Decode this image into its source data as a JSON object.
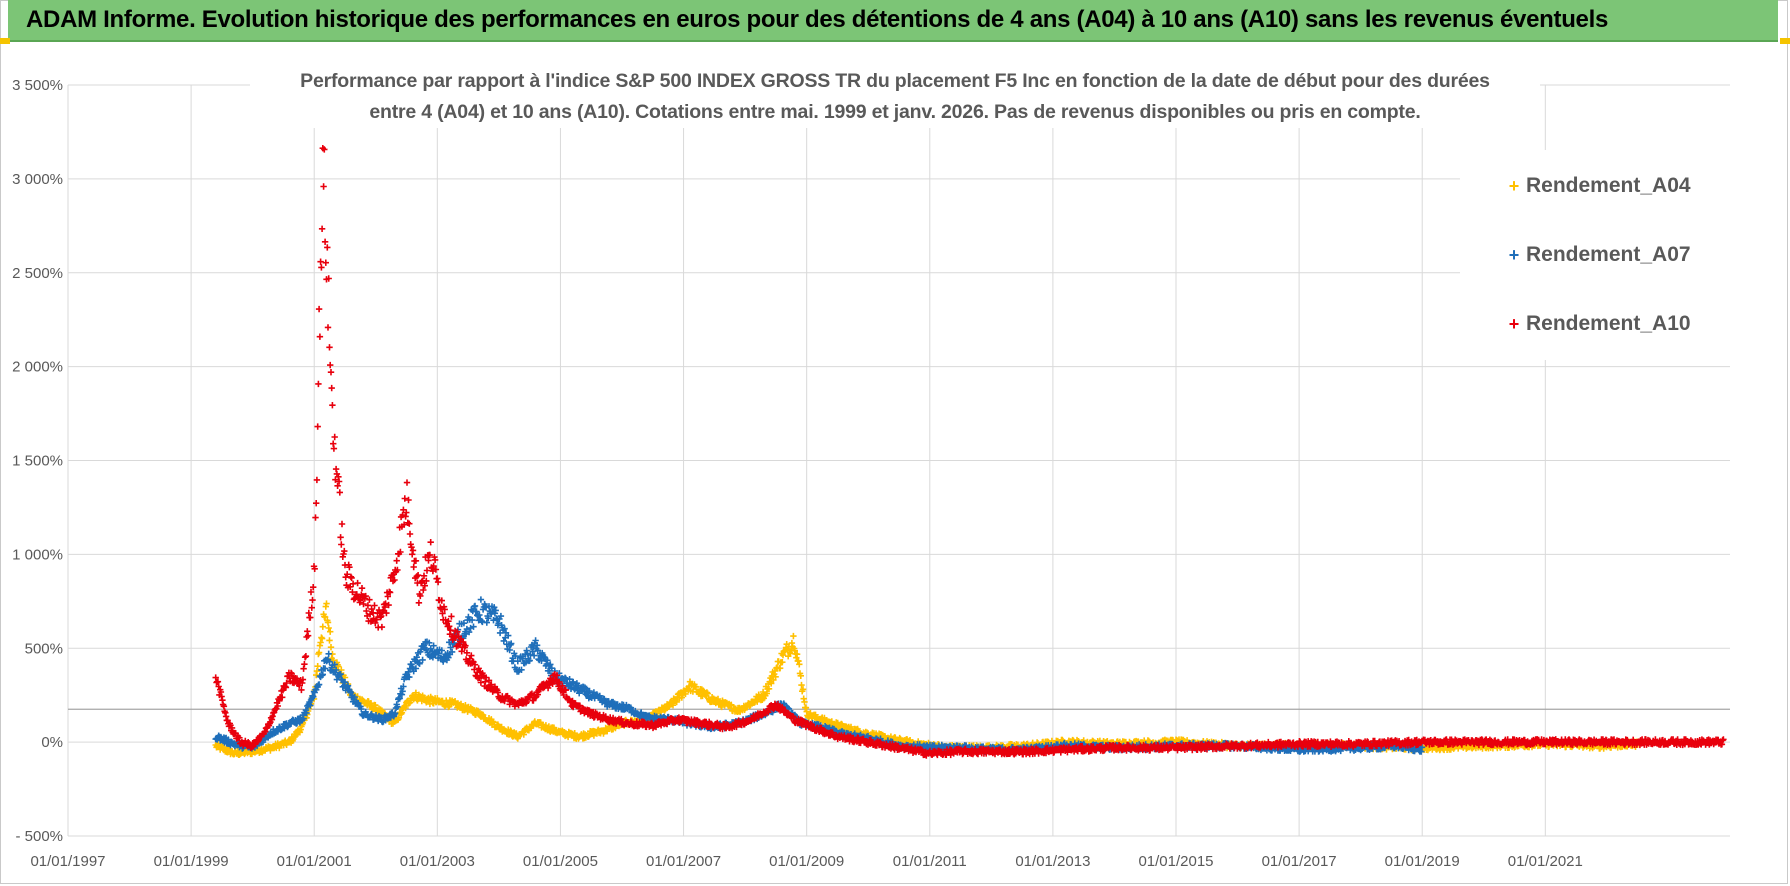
{
  "banner": {
    "title": "ADAM Informe. Evolution historique des performances en euros pour des détentions de 4 ans (A04) à 10 ans (A10) sans les revenus éventuels"
  },
  "colors": {
    "banner_bg": "#7cc576",
    "A04": "#ffc000",
    "A07": "#1f6fba",
    "A10": "#e8000d",
    "grid": "#d9d9d9",
    "axis_text": "#595959"
  },
  "chart_data": {
    "type": "scatter",
    "title_lines": [
      "Performance par rapport à l'indice S&P 500 INDEX GROSS TR  du placement F5 Inc en fonction de la date de début pour des durées",
      "entre 4 (A04) et 10 ans (A10).  Cotations entre mai. 1999 et janv. 2026.  Pas de revenus disponibles ou pris en compte."
    ],
    "xlabel": "",
    "ylabel": "",
    "x_range": [
      1997.0,
      2024.0
    ],
    "ylim": [
      -500,
      3500
    ],
    "y_ticks": [
      -500,
      0,
      500,
      1000,
      1500,
      2000,
      2500,
      3000,
      3500
    ],
    "y_tick_labels": [
      "- 500%",
      "0%",
      "500%",
      "1 000%",
      "1 500%",
      "2 000%",
      "2 500%",
      "3 000%",
      "3 500%"
    ],
    "x_ticks": [
      1997,
      1999,
      2001,
      2003,
      2005,
      2007,
      2009,
      2011,
      2013,
      2015,
      2017,
      2019,
      2021
    ],
    "x_tick_labels": [
      "01/01/1997",
      "01/01/1999",
      "01/01/2001",
      "01/01/2003",
      "01/01/2005",
      "01/01/2007",
      "01/01/2009",
      "01/01/2011",
      "01/01/2013",
      "01/01/2015",
      "01/01/2017",
      "01/01/2019",
      "01/01/2021"
    ],
    "reference_line_value": 175,
    "grid": true,
    "legend_position": "top-right",
    "series": [
      {
        "name": "Rendement_A04",
        "marker": "+",
        "color": "#ffc000",
        "x_start": 1999.4,
        "x_end": 2022.5,
        "points": [
          [
            1999.4,
            -20
          ],
          [
            1999.7,
            -60
          ],
          [
            2000.0,
            -50
          ],
          [
            2000.3,
            -30
          ],
          [
            2000.6,
            0
          ],
          [
            2000.8,
            80
          ],
          [
            2001.0,
            250
          ],
          [
            2001.1,
            550
          ],
          [
            2001.2,
            700
          ],
          [
            2001.3,
            450
          ],
          [
            2001.6,
            250
          ],
          [
            2002.0,
            180
          ],
          [
            2002.3,
            100
          ],
          [
            2002.6,
            250
          ],
          [
            2002.9,
            220
          ],
          [
            2003.3,
            200
          ],
          [
            2003.7,
            150
          ],
          [
            2004.0,
            80
          ],
          [
            2004.3,
            30
          ],
          [
            2004.6,
            100
          ],
          [
            2005.0,
            50
          ],
          [
            2005.3,
            30
          ],
          [
            2005.7,
            60
          ],
          [
            2006.0,
            100
          ],
          [
            2006.4,
            120
          ],
          [
            2006.8,
            200
          ],
          [
            2007.1,
            300
          ],
          [
            2007.5,
            220
          ],
          [
            2007.9,
            170
          ],
          [
            2008.3,
            250
          ],
          [
            2008.6,
            450
          ],
          [
            2008.8,
            550
          ],
          [
            2009.0,
            150
          ],
          [
            2009.4,
            100
          ],
          [
            2009.8,
            60
          ],
          [
            2010.3,
            20
          ],
          [
            2010.8,
            -10
          ],
          [
            2011.3,
            -30
          ],
          [
            2012.0,
            -30
          ],
          [
            2012.6,
            -20
          ],
          [
            2013.2,
            0
          ],
          [
            2014.0,
            -10
          ],
          [
            2015.0,
            0
          ],
          [
            2016.0,
            -20
          ],
          [
            2017.0,
            -20
          ],
          [
            2018.0,
            -20
          ],
          [
            2019.0,
            -30
          ],
          [
            2020.0,
            -20
          ],
          [
            2021.0,
            -10
          ],
          [
            2021.9,
            -20
          ],
          [
            2022.5,
            -10
          ]
        ]
      },
      {
        "name": "Rendement_A07",
        "marker": "+",
        "color": "#1f6fba",
        "x_start": 1999.4,
        "x_end": 2019.0,
        "points": [
          [
            1999.4,
            30
          ],
          [
            1999.7,
            -10
          ],
          [
            2000.0,
            -30
          ],
          [
            2000.3,
            50
          ],
          [
            2000.6,
            100
          ],
          [
            2000.8,
            120
          ],
          [
            2001.0,
            250
          ],
          [
            2001.2,
            450
          ],
          [
            2001.5,
            300
          ],
          [
            2001.8,
            150
          ],
          [
            2002.1,
            120
          ],
          [
            2002.3,
            150
          ],
          [
            2002.5,
            350
          ],
          [
            2002.8,
            500
          ],
          [
            2003.1,
            450
          ],
          [
            2003.4,
            600
          ],
          [
            2003.7,
            700
          ],
          [
            2004.0,
            650
          ],
          [
            2004.3,
            400
          ],
          [
            2004.6,
            500
          ],
          [
            2004.9,
            350
          ],
          [
            2005.2,
            300
          ],
          [
            2005.5,
            250
          ],
          [
            2005.8,
            200
          ],
          [
            2006.1,
            180
          ],
          [
            2006.4,
            130
          ],
          [
            2006.8,
            120
          ],
          [
            2007.1,
            100
          ],
          [
            2007.5,
            80
          ],
          [
            2007.9,
            100
          ],
          [
            2008.3,
            150
          ],
          [
            2008.6,
            200
          ],
          [
            2008.9,
            100
          ],
          [
            2009.2,
            80
          ],
          [
            2009.6,
            40
          ],
          [
            2010.0,
            20
          ],
          [
            2010.5,
            -20
          ],
          [
            2011.0,
            -30
          ],
          [
            2011.5,
            -30
          ],
          [
            2012.0,
            -40
          ],
          [
            2012.6,
            -40
          ],
          [
            2013.2,
            -20
          ],
          [
            2014.0,
            -30
          ],
          [
            2015.0,
            -20
          ],
          [
            2016.0,
            -20
          ],
          [
            2017.0,
            -40
          ],
          [
            2018.0,
            -30
          ],
          [
            2018.6,
            -20
          ],
          [
            2019.0,
            -40
          ]
        ]
      },
      {
        "name": "Rendement_A10",
        "marker": "+",
        "color": "#e8000d",
        "x_start": 1999.4,
        "x_end": 2023.9,
        "points": [
          [
            1999.4,
            350
          ],
          [
            1999.6,
            100
          ],
          [
            1999.8,
            0
          ],
          [
            2000.0,
            -20
          ],
          [
            2000.2,
            50
          ],
          [
            2000.4,
            200
          ],
          [
            2000.6,
            350
          ],
          [
            2000.8,
            300
          ],
          [
            2001.0,
            900
          ],
          [
            2001.05,
            1600
          ],
          [
            2001.1,
            2500
          ],
          [
            2001.15,
            3050
          ],
          [
            2001.2,
            2600
          ],
          [
            2001.3,
            1700
          ],
          [
            2001.4,
            1300
          ],
          [
            2001.5,
            900
          ],
          [
            2001.7,
            800
          ],
          [
            2001.9,
            700
          ],
          [
            2002.1,
            650
          ],
          [
            2002.3,
            900
          ],
          [
            2002.5,
            1300
          ],
          [
            2002.7,
            800
          ],
          [
            2002.9,
            1000
          ],
          [
            2003.1,
            700
          ],
          [
            2003.4,
            500
          ],
          [
            2003.7,
            350
          ],
          [
            2004.0,
            250
          ],
          [
            2004.3,
            200
          ],
          [
            2004.6,
            250
          ],
          [
            2004.9,
            350
          ],
          [
            2005.2,
            200
          ],
          [
            2005.5,
            150
          ],
          [
            2005.8,
            120
          ],
          [
            2006.1,
            100
          ],
          [
            2006.5,
            90
          ],
          [
            2006.9,
            120
          ],
          [
            2007.3,
            100
          ],
          [
            2007.7,
            80
          ],
          [
            2008.1,
            120
          ],
          [
            2008.5,
            200
          ],
          [
            2008.8,
            120
          ],
          [
            2009.1,
            80
          ],
          [
            2009.5,
            30
          ],
          [
            2010.0,
            0
          ],
          [
            2010.5,
            -30
          ],
          [
            2011.0,
            -60
          ],
          [
            2011.5,
            -50
          ],
          [
            2012.0,
            -50
          ],
          [
            2012.6,
            -50
          ],
          [
            2013.2,
            -40
          ],
          [
            2014.0,
            -30
          ],
          [
            2015.0,
            -30
          ],
          [
            2016.0,
            -20
          ],
          [
            2017.0,
            -10
          ],
          [
            2018.0,
            -10
          ],
          [
            2019.0,
            0
          ],
          [
            2020.0,
            0
          ],
          [
            2021.0,
            0
          ],
          [
            2022.0,
            0
          ],
          [
            2023.0,
            0
          ],
          [
            2023.9,
            0
          ]
        ]
      }
    ]
  }
}
